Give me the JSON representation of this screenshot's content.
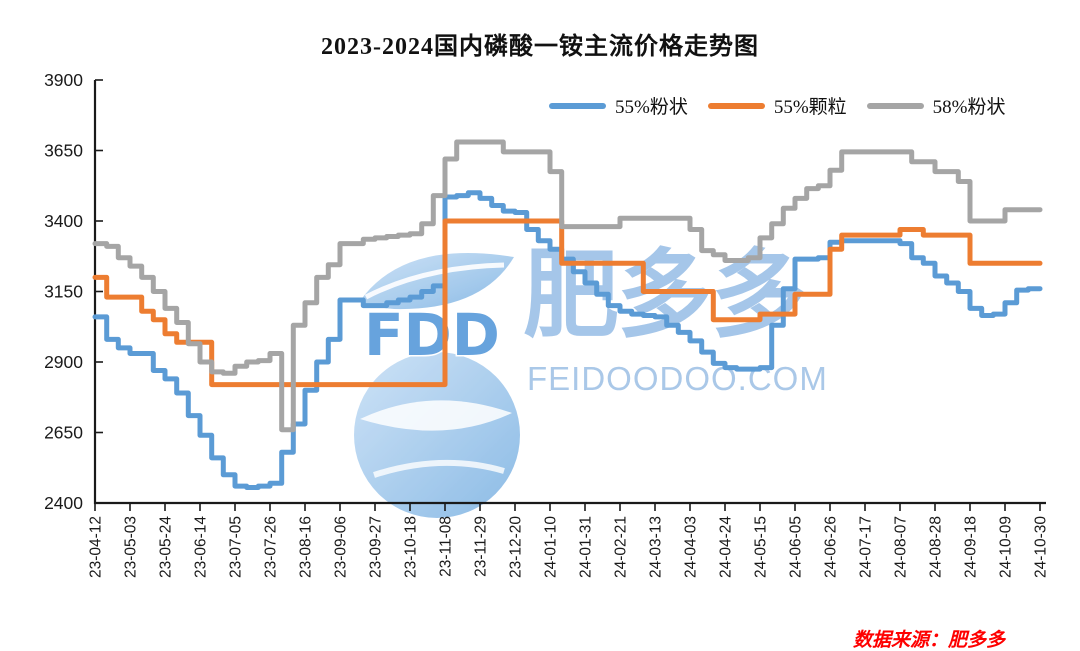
{
  "title": "2023-2024国内磷酸一铵主流价格走势图",
  "source_note": "数据来源：肥多多",
  "watermark": {
    "logo_text": "FDD",
    "brand_cn": "肥多多",
    "site": "FEIDOODOO.COM"
  },
  "chart_data": {
    "type": "line",
    "title": "2023-2024国内磷酸一铵主流价格走势图",
    "interpolation": "step-after",
    "grid": false,
    "legend_position": "top-right",
    "axis_color": "#1a1a1a",
    "ylim": [
      2400,
      3900
    ],
    "y_ticks": [
      2400,
      2650,
      2900,
      3150,
      3400,
      3650,
      3900
    ],
    "x_points_per_tick": 3,
    "x_tick_labels": [
      "23-04-12",
      "23-05-03",
      "23-05-24",
      "23-06-14",
      "23-07-05",
      "23-07-26",
      "23-08-16",
      "23-09-06",
      "23-09-27",
      "23-10-18",
      "23-11-08",
      "23-11-29",
      "23-12-20",
      "24-01-10",
      "24-01-31",
      "24-02-21",
      "24-03-13",
      "24-04-03",
      "24-04-24",
      "24-05-15",
      "24-06-05",
      "24-06-26",
      "24-07-17",
      "24-08-07",
      "24-08-28",
      "24-09-18",
      "24-10-09",
      "24-10-30"
    ],
    "series": [
      {
        "name": "55%粉状",
        "color": "#5B9BD5",
        "values": [
          3060,
          2980,
          2950,
          2930,
          2930,
          2870,
          2840,
          2790,
          2710,
          2640,
          2560,
          2500,
          2460,
          2455,
          2460,
          2470,
          2580,
          2680,
          2800,
          2900,
          2980,
          3120,
          3120,
          3100,
          3100,
          3110,
          3120,
          3130,
          3150,
          3170,
          3485,
          3490,
          3500,
          3480,
          3455,
          3435,
          3430,
          3370,
          3330,
          3300,
          3265,
          3220,
          3180,
          3140,
          3100,
          3080,
          3070,
          3065,
          3060,
          3030,
          3005,
          2975,
          2935,
          2895,
          2880,
          2875,
          2875,
          2880,
          3030,
          3160,
          3265,
          3265,
          3270,
          3325,
          3330,
          3330,
          3330,
          3330,
          3330,
          3320,
          3270,
          3250,
          3205,
          3180,
          3150,
          3090,
          3065,
          3070,
          3110,
          3155,
          3160,
          3160
        ]
      },
      {
        "name": "55%颗粒",
        "color": "#ED7D31",
        "values": [
          3200,
          3130,
          3130,
          3130,
          3080,
          3050,
          3000,
          2970,
          2970,
          2970,
          2820,
          2820,
          2820,
          2820,
          2820,
          2820,
          2820,
          2820,
          2820,
          2820,
          2820,
          2820,
          2820,
          2820,
          2820,
          2820,
          2820,
          2820,
          2820,
          2820,
          3400,
          3400,
          3400,
          3400,
          3400,
          3400,
          3400,
          3400,
          3400,
          3400,
          3250,
          3250,
          3250,
          3250,
          3250,
          3250,
          3250,
          3150,
          3150,
          3150,
          3150,
          3150,
          3150,
          3050,
          3050,
          3050,
          3050,
          3070,
          3070,
          3070,
          3140,
          3140,
          3140,
          3300,
          3350,
          3350,
          3350,
          3350,
          3350,
          3370,
          3370,
          3350,
          3350,
          3350,
          3350,
          3250,
          3250,
          3250,
          3250,
          3250,
          3250,
          3250
        ]
      },
      {
        "name": "58%粉状",
        "color": "#A5A5A5",
        "values": [
          3320,
          3310,
          3270,
          3240,
          3200,
          3150,
          3090,
          3040,
          2965,
          2900,
          2865,
          2860,
          2885,
          2900,
          2905,
          2930,
          2660,
          3030,
          3110,
          3200,
          3245,
          3320,
          3320,
          3335,
          3340,
          3345,
          3350,
          3355,
          3390,
          3490,
          3620,
          3680,
          3680,
          3680,
          3680,
          3645,
          3645,
          3645,
          3645,
          3575,
          3380,
          3380,
          3380,
          3380,
          3380,
          3410,
          3410,
          3410,
          3410,
          3410,
          3410,
          3370,
          3295,
          3280,
          3260,
          3260,
          3270,
          3340,
          3390,
          3445,
          3480,
          3515,
          3525,
          3580,
          3645,
          3645,
          3645,
          3645,
          3645,
          3645,
          3610,
          3610,
          3575,
          3575,
          3540,
          3400,
          3400,
          3400,
          3440,
          3440,
          3440,
          3440
        ]
      }
    ]
  }
}
